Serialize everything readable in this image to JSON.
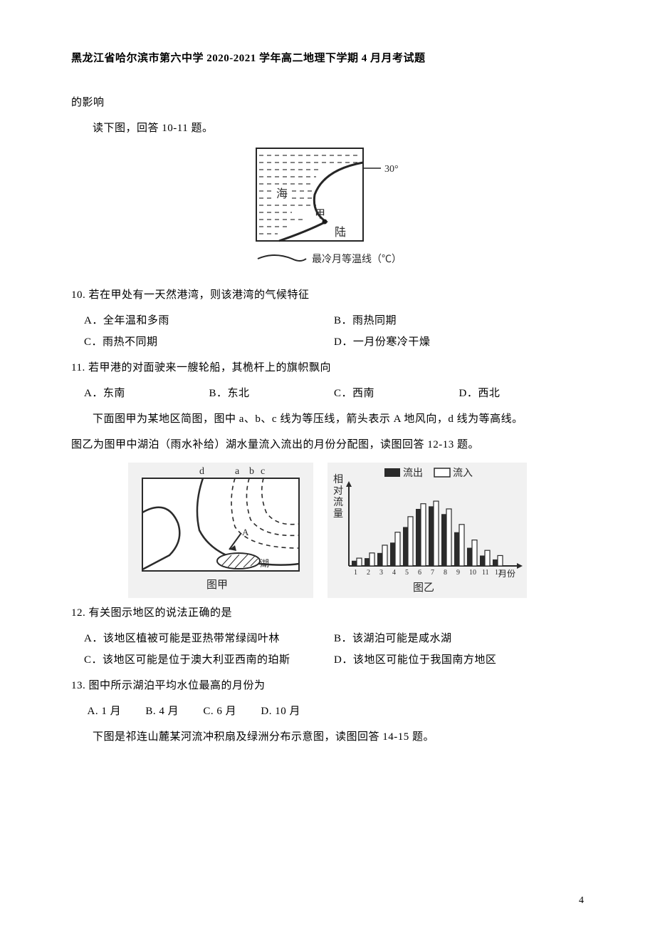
{
  "header": "黑龙江省哈尔滨市第六中学 2020-2021 学年高二地理下学期 4 月月考试题",
  "tail_prev": "的影响",
  "instr_10_11": "读下图，回答 10-11 题。",
  "fig1": {
    "label_sea": "海",
    "label_jia": "甲",
    "label_land": "陆",
    "label_lat": "30°",
    "legend": "最冷月等温线（℃）",
    "border_color": "#262626",
    "water_color": "#262626",
    "text_color": "#2a2a2a"
  },
  "q10": {
    "stem": "10. 若在甲处有一天然港湾，则该港湾的气候特征",
    "A": "A．全年温和多雨",
    "B": "B．雨热同期",
    "C": "C．雨热不同期",
    "D": "D．一月份寒冷干燥"
  },
  "q11": {
    "stem": "11. 若甲港的对面驶来一艘轮船，其桅杆上的旗帜飘向",
    "A": "A．东南",
    "B": "B．东北",
    "C": "C．西南",
    "D": "D．西北"
  },
  "intro_12_13_l1": "下面图甲为某地区简图，图中 a、b、c 线为等压线，箭头表示 A 地风向，d 线为等高线。",
  "intro_12_13_l2": "图乙为图甲中湖泊（雨水补给）湖水量流入流出的月份分配图，读图回答 12-13 题。",
  "fig2a": {
    "labels": {
      "d": "d",
      "a": "a",
      "b": "b",
      "c": "c",
      "A": "A",
      "hu": "湖"
    },
    "caption": "图甲"
  },
  "fig2b": {
    "y_label": "相对流量",
    "legend_out": "流出",
    "legend_in": "流入",
    "x_suffix": "月份",
    "out_vals": [
      4,
      6,
      10,
      18,
      30,
      44,
      46,
      40,
      26,
      14,
      8,
      5
    ],
    "in_vals": [
      6,
      10,
      16,
      26,
      38,
      48,
      50,
      44,
      32,
      20,
      12,
      8
    ],
    "plot_bg": "#f1f1f1",
    "bar_out": "#2b2b2b",
    "bar_in_fill": "#ffffff",
    "bar_in_stroke": "#2b2b2b",
    "text_color": "#2a2a2a",
    "caption": "图乙"
  },
  "q12": {
    "stem": "12. 有关图示地区的说法正确的是",
    "A": "A．该地区植被可能是亚热带常绿阔叶林",
    "B": "B．该湖泊可能是咸水湖",
    "C": "C．该地区可能是位于澳大利亚西南的珀斯",
    "D": "D．该地区可能位于我国南方地区"
  },
  "q13": {
    "stem": "13. 图中所示湖泊平均水位最高的月份为",
    "A": "A. 1 月",
    "B": "B. 4 月",
    "C": "C. 6 月",
    "D": "D. 10 月"
  },
  "intro_14_15": "下图是祁连山麓某河流冲积扇及绿洲分布示意图，读图回答 14-15 题。",
  "page_number": "4"
}
